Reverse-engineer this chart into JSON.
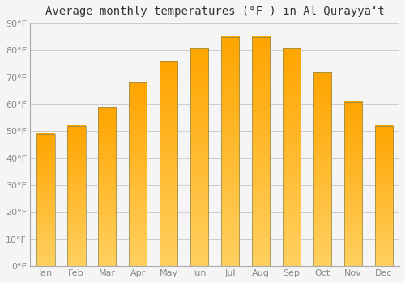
{
  "title": "Average monthly temperatures (°F ) in Al Qurayyāʻt",
  "months": [
    "Jan",
    "Feb",
    "Mar",
    "Apr",
    "May",
    "Jun",
    "Jul",
    "Aug",
    "Sep",
    "Oct",
    "Nov",
    "Dec"
  ],
  "values": [
    49,
    52,
    59,
    68,
    76,
    81,
    85,
    85,
    81,
    72,
    61,
    52
  ],
  "bar_color_top": "#FFA500",
  "bar_color_bottom": "#FFD060",
  "bar_outline_color": "#888855",
  "ylim": [
    0,
    90
  ],
  "yticks": [
    0,
    10,
    20,
    30,
    40,
    50,
    60,
    70,
    80,
    90
  ],
  "ytick_labels": [
    "0°F",
    "10°F",
    "20°F",
    "30°F",
    "40°F",
    "50°F",
    "60°F",
    "70°F",
    "80°F",
    "90°F"
  ],
  "grid_color": "#cccccc",
  "background_color": "#f5f5f5",
  "plot_bg_color": "#f5f5f5",
  "title_fontsize": 10,
  "tick_fontsize": 8,
  "tick_color": "#888888",
  "bar_width": 0.6
}
